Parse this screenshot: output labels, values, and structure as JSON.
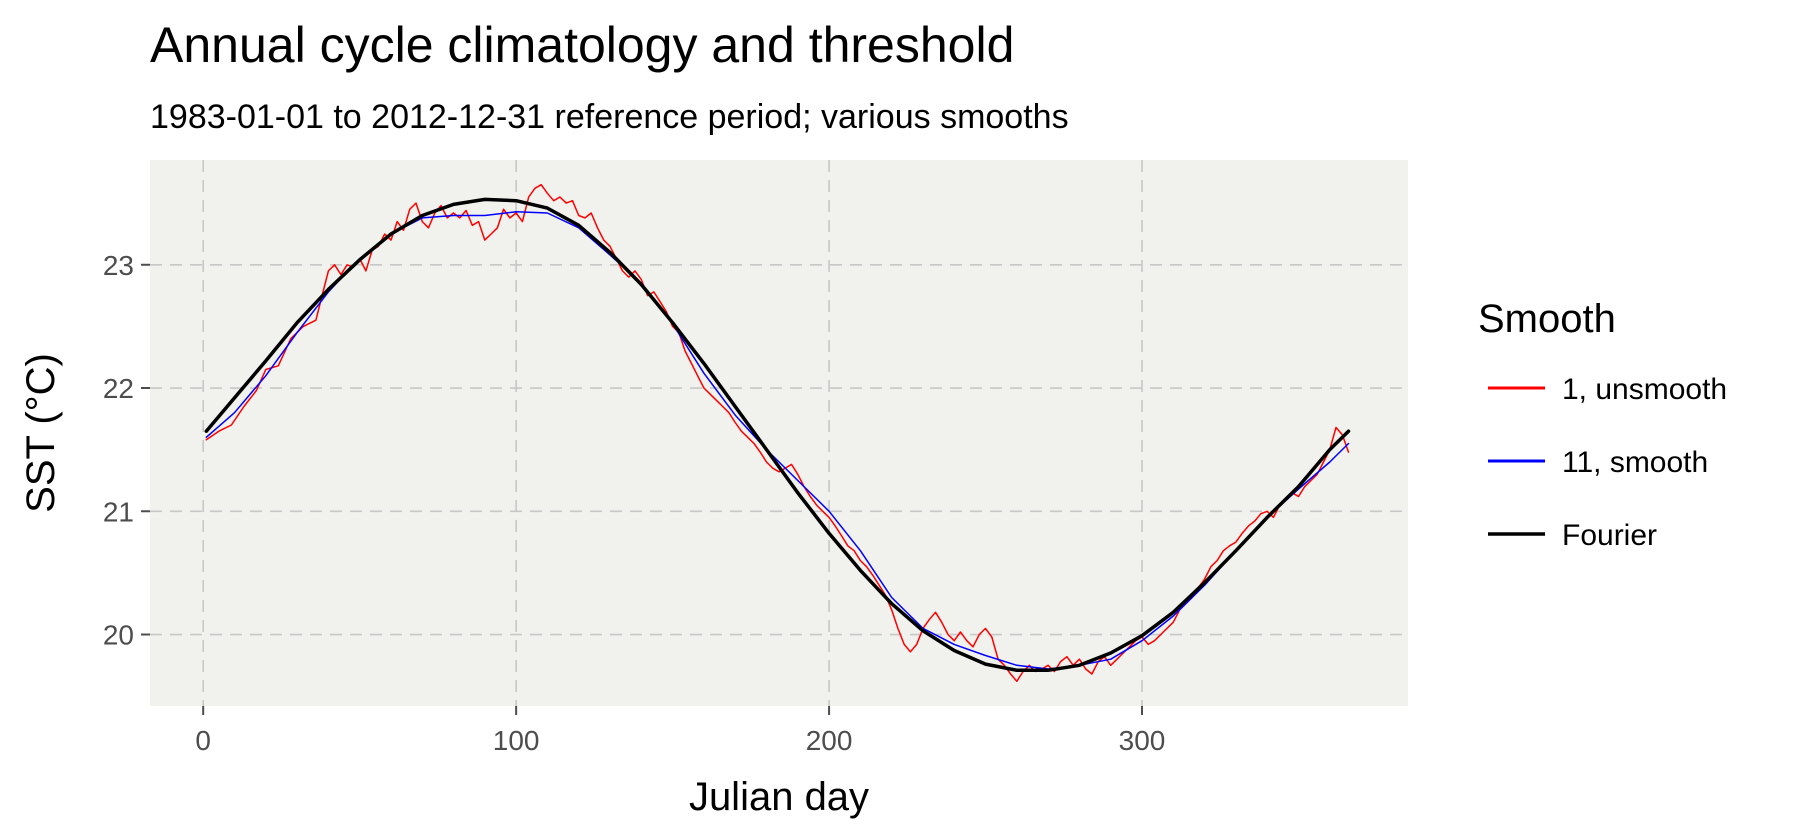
{
  "chart_data": {
    "type": "line",
    "title": "Annual cycle climatology and threshold",
    "subtitle": "1983-01-01 to 2012-12-31 reference period; various smooths",
    "xlabel": "Julian day",
    "ylabel": "SST (°C)",
    "xlim": [
      -17,
      385
    ],
    "ylim": [
      19.42,
      23.85
    ],
    "x_ticks": [
      0,
      100,
      200,
      300
    ],
    "x_tick_labels": [
      "0",
      "100",
      "200",
      "300"
    ],
    "y_ticks": [
      20,
      21,
      22,
      23
    ],
    "y_tick_labels": [
      "20",
      "21",
      "22",
      "23"
    ],
    "grid": true,
    "panel_background": "#f1f1ed",
    "legend": {
      "title": "Smooth",
      "position": "right"
    },
    "series": [
      {
        "name": "1, unsmooth",
        "color": "#ff0000",
        "points": [
          [
            1,
            21.58
          ],
          [
            5,
            21.65
          ],
          [
            9,
            21.7
          ],
          [
            13,
            21.85
          ],
          [
            17,
            21.98
          ],
          [
            20,
            22.15
          ],
          [
            24,
            22.18
          ],
          [
            28,
            22.4
          ],
          [
            32,
            22.5
          ],
          [
            36,
            22.55
          ],
          [
            38,
            22.75
          ],
          [
            40,
            22.95
          ],
          [
            42,
            23.0
          ],
          [
            44,
            22.92
          ],
          [
            46,
            23.0
          ],
          [
            48,
            22.98
          ],
          [
            50,
            23.05
          ],
          [
            52,
            22.95
          ],
          [
            54,
            23.12
          ],
          [
            56,
            23.15
          ],
          [
            58,
            23.25
          ],
          [
            60,
            23.2
          ],
          [
            62,
            23.35
          ],
          [
            64,
            23.28
          ],
          [
            66,
            23.45
          ],
          [
            68,
            23.5
          ],
          [
            70,
            23.35
          ],
          [
            72,
            23.3
          ],
          [
            74,
            23.42
          ],
          [
            76,
            23.48
          ],
          [
            78,
            23.38
          ],
          [
            80,
            23.42
          ],
          [
            82,
            23.38
          ],
          [
            84,
            23.44
          ],
          [
            86,
            23.32
          ],
          [
            88,
            23.35
          ],
          [
            90,
            23.2
          ],
          [
            92,
            23.25
          ],
          [
            94,
            23.3
          ],
          [
            96,
            23.45
          ],
          [
            98,
            23.38
          ],
          [
            100,
            23.42
          ],
          [
            102,
            23.35
          ],
          [
            104,
            23.55
          ],
          [
            106,
            23.62
          ],
          [
            108,
            23.65
          ],
          [
            110,
            23.58
          ],
          [
            112,
            23.52
          ],
          [
            114,
            23.55
          ],
          [
            116,
            23.5
          ],
          [
            118,
            23.52
          ],
          [
            120,
            23.4
          ],
          [
            122,
            23.38
          ],
          [
            124,
            23.42
          ],
          [
            126,
            23.3
          ],
          [
            128,
            23.2
          ],
          [
            130,
            23.15
          ],
          [
            132,
            23.05
          ],
          [
            134,
            22.95
          ],
          [
            136,
            22.9
          ],
          [
            138,
            22.95
          ],
          [
            140,
            22.88
          ],
          [
            142,
            22.75
          ],
          [
            144,
            22.78
          ],
          [
            146,
            22.7
          ],
          [
            148,
            22.62
          ],
          [
            150,
            22.5
          ],
          [
            152,
            22.45
          ],
          [
            154,
            22.3
          ],
          [
            156,
            22.2
          ],
          [
            158,
            22.1
          ],
          [
            160,
            22.0
          ],
          [
            162,
            21.95
          ],
          [
            164,
            21.9
          ],
          [
            166,
            21.85
          ],
          [
            168,
            21.8
          ],
          [
            170,
            21.72
          ],
          [
            172,
            21.65
          ],
          [
            174,
            21.6
          ],
          [
            176,
            21.55
          ],
          [
            178,
            21.48
          ],
          [
            180,
            21.4
          ],
          [
            182,
            21.35
          ],
          [
            184,
            21.32
          ],
          [
            186,
            21.35
          ],
          [
            188,
            21.38
          ],
          [
            190,
            21.3
          ],
          [
            192,
            21.2
          ],
          [
            194,
            21.12
          ],
          [
            196,
            21.05
          ],
          [
            198,
            21.0
          ],
          [
            200,
            20.95
          ],
          [
            202,
            20.88
          ],
          [
            204,
            20.8
          ],
          [
            206,
            20.72
          ],
          [
            208,
            20.68
          ],
          [
            210,
            20.6
          ],
          [
            212,
            20.55
          ],
          [
            214,
            20.48
          ],
          [
            216,
            20.4
          ],
          [
            218,
            20.32
          ],
          [
            220,
            20.2
          ],
          [
            222,
            20.05
          ],
          [
            224,
            19.92
          ],
          [
            226,
            19.86
          ],
          [
            228,
            19.92
          ],
          [
            230,
            20.05
          ],
          [
            232,
            20.12
          ],
          [
            234,
            20.18
          ],
          [
            236,
            20.1
          ],
          [
            238,
            20.0
          ],
          [
            240,
            19.95
          ],
          [
            242,
            20.02
          ],
          [
            244,
            19.95
          ],
          [
            246,
            19.9
          ],
          [
            248,
            20.0
          ],
          [
            250,
            20.05
          ],
          [
            252,
            19.98
          ],
          [
            254,
            19.8
          ],
          [
            256,
            19.75
          ],
          [
            258,
            19.68
          ],
          [
            260,
            19.62
          ],
          [
            262,
            19.7
          ],
          [
            264,
            19.75
          ],
          [
            266,
            19.7
          ],
          [
            268,
            19.72
          ],
          [
            270,
            19.75
          ],
          [
            272,
            19.7
          ],
          [
            274,
            19.78
          ],
          [
            276,
            19.82
          ],
          [
            278,
            19.75
          ],
          [
            280,
            19.8
          ],
          [
            282,
            19.72
          ],
          [
            284,
            19.68
          ],
          [
            286,
            19.78
          ],
          [
            288,
            19.82
          ],
          [
            290,
            19.75
          ],
          [
            292,
            19.8
          ],
          [
            294,
            19.85
          ],
          [
            296,
            19.9
          ],
          [
            298,
            19.95
          ],
          [
            300,
            19.98
          ],
          [
            302,
            19.92
          ],
          [
            304,
            19.95
          ],
          [
            306,
            20.0
          ],
          [
            308,
            20.05
          ],
          [
            310,
            20.1
          ],
          [
            312,
            20.2
          ],
          [
            314,
            20.25
          ],
          [
            316,
            20.3
          ],
          [
            318,
            20.38
          ],
          [
            320,
            20.45
          ],
          [
            322,
            20.55
          ],
          [
            324,
            20.6
          ],
          [
            326,
            20.68
          ],
          [
            328,
            20.72
          ],
          [
            330,
            20.75
          ],
          [
            332,
            20.82
          ],
          [
            334,
            20.88
          ],
          [
            336,
            20.92
          ],
          [
            338,
            20.98
          ],
          [
            340,
            21.0
          ],
          [
            342,
            20.95
          ],
          [
            344,
            21.05
          ],
          [
            346,
            21.1
          ],
          [
            348,
            21.15
          ],
          [
            350,
            21.12
          ],
          [
            352,
            21.2
          ],
          [
            354,
            21.25
          ],
          [
            356,
            21.3
          ],
          [
            358,
            21.4
          ],
          [
            360,
            21.5
          ],
          [
            362,
            21.68
          ],
          [
            364,
            21.62
          ],
          [
            366,
            21.48
          ]
        ]
      },
      {
        "name": "11, smooth",
        "color": "#0000ff",
        "points": [
          [
            1,
            21.6
          ],
          [
            10,
            21.8
          ],
          [
            20,
            22.1
          ],
          [
            30,
            22.45
          ],
          [
            40,
            22.78
          ],
          [
            50,
            23.05
          ],
          [
            60,
            23.25
          ],
          [
            70,
            23.38
          ],
          [
            80,
            23.4
          ],
          [
            90,
            23.4
          ],
          [
            100,
            23.43
          ],
          [
            110,
            23.42
          ],
          [
            120,
            23.3
          ],
          [
            130,
            23.08
          ],
          [
            140,
            22.85
          ],
          [
            150,
            22.52
          ],
          [
            160,
            22.12
          ],
          [
            170,
            21.78
          ],
          [
            180,
            21.5
          ],
          [
            190,
            21.25
          ],
          [
            200,
            21.0
          ],
          [
            210,
            20.68
          ],
          [
            220,
            20.3
          ],
          [
            230,
            20.05
          ],
          [
            240,
            19.92
          ],
          [
            250,
            19.83
          ],
          [
            260,
            19.75
          ],
          [
            270,
            19.72
          ],
          [
            280,
            19.75
          ],
          [
            290,
            19.8
          ],
          [
            300,
            19.95
          ],
          [
            310,
            20.15
          ],
          [
            320,
            20.4
          ],
          [
            330,
            20.68
          ],
          [
            340,
            20.95
          ],
          [
            350,
            21.18
          ],
          [
            360,
            21.4
          ],
          [
            366,
            21.55
          ]
        ]
      },
      {
        "name": "Fourier",
        "color": "#000000",
        "points": [
          [
            1,
            21.65
          ],
          [
            10,
            21.92
          ],
          [
            20,
            22.22
          ],
          [
            30,
            22.53
          ],
          [
            40,
            22.8
          ],
          [
            50,
            23.04
          ],
          [
            60,
            23.25
          ],
          [
            70,
            23.4
          ],
          [
            80,
            23.49
          ],
          [
            90,
            23.53
          ],
          [
            100,
            23.52
          ],
          [
            110,
            23.46
          ],
          [
            120,
            23.32
          ],
          [
            130,
            23.1
          ],
          [
            140,
            22.84
          ],
          [
            150,
            22.53
          ],
          [
            160,
            22.2
          ],
          [
            170,
            21.85
          ],
          [
            180,
            21.5
          ],
          [
            190,
            21.15
          ],
          [
            200,
            20.82
          ],
          [
            210,
            20.52
          ],
          [
            220,
            20.25
          ],
          [
            230,
            20.03
          ],
          [
            240,
            19.87
          ],
          [
            250,
            19.76
          ],
          [
            260,
            19.71
          ],
          [
            270,
            19.71
          ],
          [
            280,
            19.75
          ],
          [
            290,
            19.85
          ],
          [
            300,
            19.99
          ],
          [
            310,
            20.18
          ],
          [
            320,
            20.42
          ],
          [
            330,
            20.68
          ],
          [
            340,
            20.95
          ],
          [
            350,
            21.2
          ],
          [
            360,
            21.5
          ],
          [
            366,
            21.65
          ]
        ]
      }
    ]
  }
}
